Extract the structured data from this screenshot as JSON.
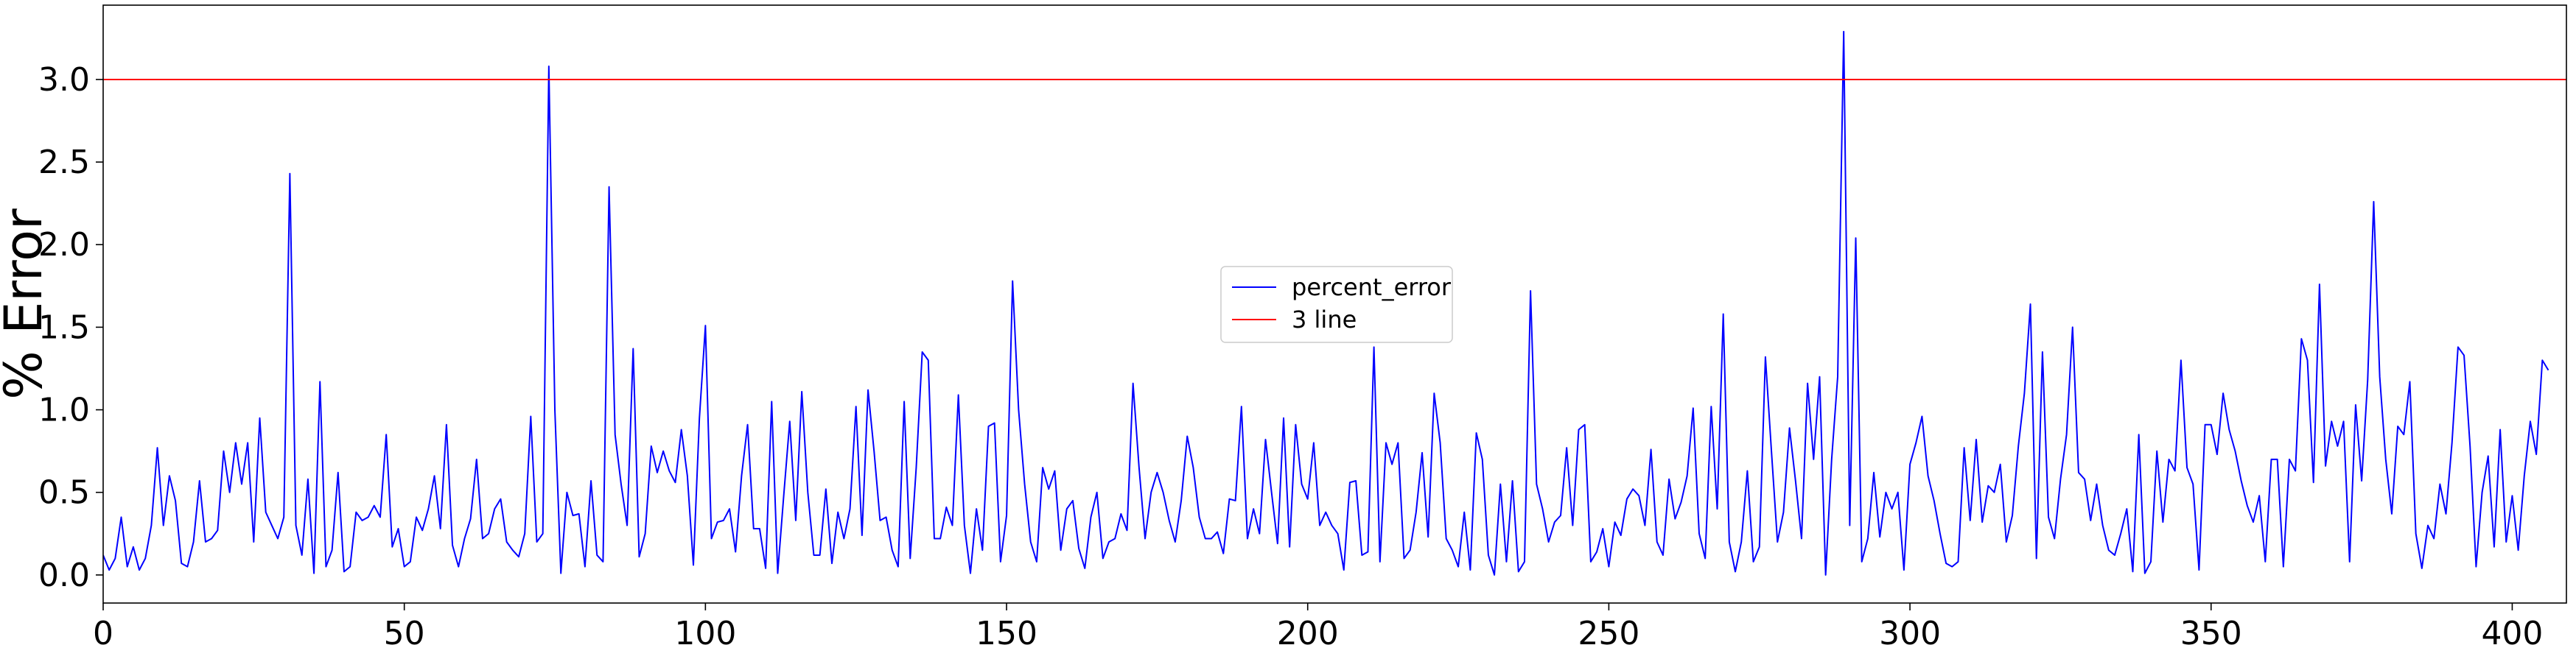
{
  "chart_data": {
    "type": "line",
    "title": "",
    "xlabel": "",
    "ylabel": "% Error",
    "xlim": [
      0,
      409
    ],
    "ylim": [
      -0.17,
      3.45
    ],
    "xticks": [
      0,
      50,
      100,
      150,
      200,
      250,
      300,
      350,
      400
    ],
    "yticks": [
      0.0,
      0.5,
      1.0,
      1.5,
      2.0,
      2.5,
      3.0
    ],
    "ytick_labels": [
      "0.0",
      "0.5",
      "1.0",
      "1.5",
      "2.0",
      "2.5",
      "3.0"
    ],
    "grid": false,
    "legend_position": "center",
    "series": [
      {
        "name": "percent_error",
        "color": "#0000ff",
        "x_start": 0,
        "values": [
          0.12,
          0.03,
          0.1,
          0.35,
          0.05,
          0.17,
          0.03,
          0.1,
          0.3,
          0.77,
          0.3,
          0.6,
          0.45,
          0.07,
          0.05,
          0.2,
          0.57,
          0.2,
          0.22,
          0.27,
          0.75,
          0.5,
          0.8,
          0.55,
          0.8,
          0.2,
          0.95,
          0.38,
          0.3,
          0.22,
          0.35,
          2.43,
          0.3,
          0.12,
          0.58,
          0.01,
          1.17,
          0.05,
          0.15,
          0.62,
          0.02,
          0.05,
          0.38,
          0.33,
          0.35,
          0.42,
          0.35,
          0.85,
          0.17,
          0.28,
          0.05,
          0.08,
          0.35,
          0.27,
          0.4,
          0.6,
          0.28,
          0.91,
          0.18,
          0.05,
          0.22,
          0.34,
          0.7,
          0.22,
          0.25,
          0.4,
          0.46,
          0.2,
          0.15,
          0.11,
          0.25,
          0.96,
          0.2,
          0.25,
          3.08,
          1.0,
          0.01,
          0.5,
          0.36,
          0.37,
          0.05,
          0.57,
          0.12,
          0.08,
          2.35,
          0.85,
          0.55,
          0.3,
          1.37,
          0.11,
          0.25,
          0.78,
          0.62,
          0.75,
          0.63,
          0.56,
          0.88,
          0.6,
          0.06,
          0.95,
          1.51,
          0.22,
          0.32,
          0.33,
          0.4,
          0.14,
          0.6,
          0.91,
          0.28,
          0.28,
          0.04,
          1.05,
          0.01,
          0.48,
          0.93,
          0.33,
          1.11,
          0.5,
          0.12,
          0.12,
          0.52,
          0.07,
          0.38,
          0.22,
          0.4,
          1.02,
          0.24,
          1.12,
          0.75,
          0.33,
          0.35,
          0.15,
          0.05,
          1.05,
          0.1,
          0.65,
          1.35,
          1.3,
          0.22,
          0.22,
          0.41,
          0.3,
          1.09,
          0.3,
          0.01,
          0.4,
          0.15,
          0.9,
          0.92,
          0.08,
          0.36,
          1.78,
          1.0,
          0.55,
          0.2,
          0.08,
          0.65,
          0.52,
          0.63,
          0.15,
          0.4,
          0.45,
          0.16,
          0.04,
          0.35,
          0.5,
          0.1,
          0.2,
          0.22,
          0.37,
          0.27,
          1.16,
          0.65,
          0.22,
          0.5,
          0.62,
          0.5,
          0.33,
          0.2,
          0.45,
          0.84,
          0.65,
          0.35,
          0.22,
          0.22,
          0.26,
          0.13,
          0.46,
          0.45,
          1.02,
          0.22,
          0.4,
          0.25,
          0.82,
          0.5,
          0.19,
          0.95,
          0.17,
          0.91,
          0.55,
          0.46,
          0.8,
          0.3,
          0.38,
          0.3,
          0.25,
          0.03,
          0.56,
          0.57,
          0.12,
          0.14,
          1.38,
          0.08,
          0.8,
          0.67,
          0.8,
          0.1,
          0.15,
          0.38,
          0.74,
          0.23,
          1.1,
          0.8,
          0.22,
          0.15,
          0.05,
          0.38,
          0.03,
          0.86,
          0.7,
          0.12,
          0.0,
          0.55,
          0.08,
          0.57,
          0.02,
          0.08,
          1.72,
          0.55,
          0.4,
          0.2,
          0.32,
          0.36,
          0.77,
          0.3,
          0.88,
          0.91,
          0.08,
          0.14,
          0.28,
          0.05,
          0.32,
          0.24,
          0.46,
          0.52,
          0.48,
          0.3,
          0.76,
          0.2,
          0.12,
          0.58,
          0.34,
          0.44,
          0.6,
          1.01,
          0.25,
          0.1,
          1.02,
          0.4,
          1.58,
          0.2,
          0.02,
          0.2,
          0.63,
          0.08,
          0.17,
          1.32,
          0.75,
          0.2,
          0.38,
          0.89,
          0.57,
          0.22,
          1.16,
          0.7,
          1.2,
          0.0,
          0.7,
          1.2,
          3.29,
          0.3,
          2.04,
          0.08,
          0.22,
          0.62,
          0.23,
          0.5,
          0.4,
          0.5,
          0.03,
          0.67,
          0.8,
          0.96,
          0.6,
          0.45,
          0.25,
          0.07,
          0.05,
          0.08,
          0.77,
          0.33,
          0.82,
          0.32,
          0.54,
          0.5,
          0.67,
          0.2,
          0.36,
          0.78,
          1.1,
          1.64,
          0.1,
          1.35,
          0.35,
          0.22,
          0.58,
          0.85,
          1.5,
          0.62,
          0.58,
          0.33,
          0.55,
          0.3,
          0.15,
          0.12,
          0.25,
          0.4,
          0.02,
          0.85,
          0.01,
          0.08,
          0.75,
          0.32,
          0.7,
          0.63,
          1.3,
          0.65,
          0.55,
          0.03,
          0.91,
          0.91,
          0.73,
          1.1,
          0.88,
          0.75,
          0.57,
          0.42,
          0.32,
          0.48,
          0.08,
          0.7,
          0.7,
          0.05,
          0.7,
          0.63,
          1.43,
          1.3,
          0.56,
          1.76,
          0.66,
          0.93,
          0.78,
          0.93,
          0.08,
          1.03,
          0.57,
          1.18,
          2.26,
          1.2,
          0.7,
          0.37,
          0.9,
          0.85,
          1.17,
          0.25,
          0.04,
          0.3,
          0.22,
          0.55,
          0.37,
          0.8,
          1.38,
          1.33,
          0.78,
          0.05,
          0.5,
          0.72,
          0.17,
          0.88,
          0.2,
          0.48,
          0.15,
          0.6,
          0.93,
          0.73,
          1.3,
          1.24
        ]
      },
      {
        "name": "3 line",
        "color": "#ff0000",
        "constant": 3.0
      }
    ]
  }
}
